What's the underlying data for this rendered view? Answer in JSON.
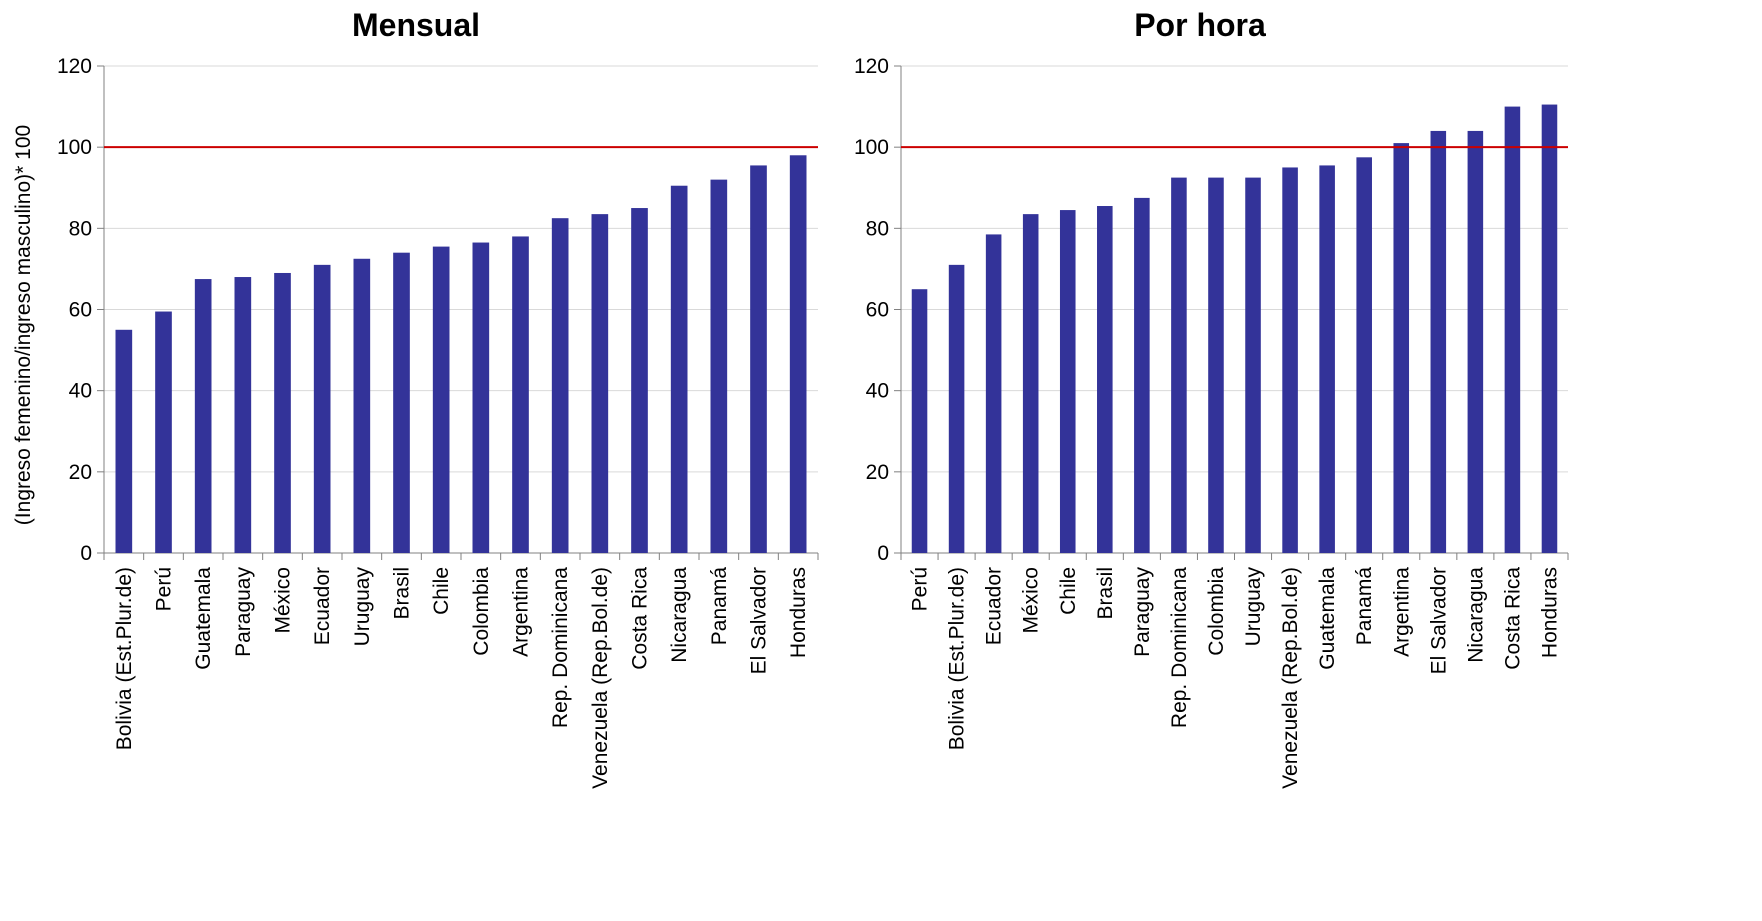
{
  "colors": {
    "bar": "#333399",
    "reference_line": "#cc0000",
    "grid": "#d9d9d9",
    "axis": "#808080"
  },
  "chart_data": [
    {
      "type": "bar",
      "title": "Mensual",
      "ylabel": "(Ingreso femenino/ingreso masculino)* 100",
      "xlabel": "",
      "ylim": [
        0,
        120
      ],
      "yticks": [
        0,
        20,
        40,
        60,
        80,
        100,
        120
      ],
      "reference_line": 100,
      "grid": true,
      "categories": [
        "Bolivia (Est.Plur.de)",
        "Perú",
        "Guatemala",
        "Paraguay",
        "México",
        "Ecuador",
        "Uruguay",
        "Brasil",
        "Chile",
        "Colombia",
        "Argentina",
        "Rep. Dominicana",
        "Venezuela (Rep.Bol.de)",
        "Costa Rica",
        "Nicaragua",
        "Panamá",
        "El Salvador",
        "Honduras"
      ],
      "values": [
        55,
        59.5,
        67.5,
        68,
        69,
        71,
        72.5,
        74,
        75.5,
        76.5,
        78,
        82.5,
        83.5,
        85,
        90.5,
        92,
        95.5,
        98
      ]
    },
    {
      "type": "bar",
      "title": "Por hora",
      "ylabel": "",
      "xlabel": "",
      "ylim": [
        0,
        120
      ],
      "yticks": [
        0,
        20,
        40,
        60,
        80,
        100,
        120
      ],
      "reference_line": 100,
      "grid": true,
      "categories": [
        "Perú",
        "Bolivia (Est.Plur.de)",
        "Ecuador",
        "México",
        "Chile",
        "Brasil",
        "Paraguay",
        "Rep. Dominicana",
        "Colombia",
        "Uruguay",
        "Venezuela (Rep.Bol.de)",
        "Guatemala",
        "Panamá",
        "Argentina",
        "El Salvador",
        "Nicaragua",
        "Costa Rica",
        "Honduras"
      ],
      "values": [
        65,
        71,
        78.5,
        83.5,
        84.5,
        85.5,
        87.5,
        92.5,
        92.5,
        92.5,
        95,
        95.5,
        97.5,
        101,
        104,
        104,
        110,
        110.5
      ]
    }
  ]
}
